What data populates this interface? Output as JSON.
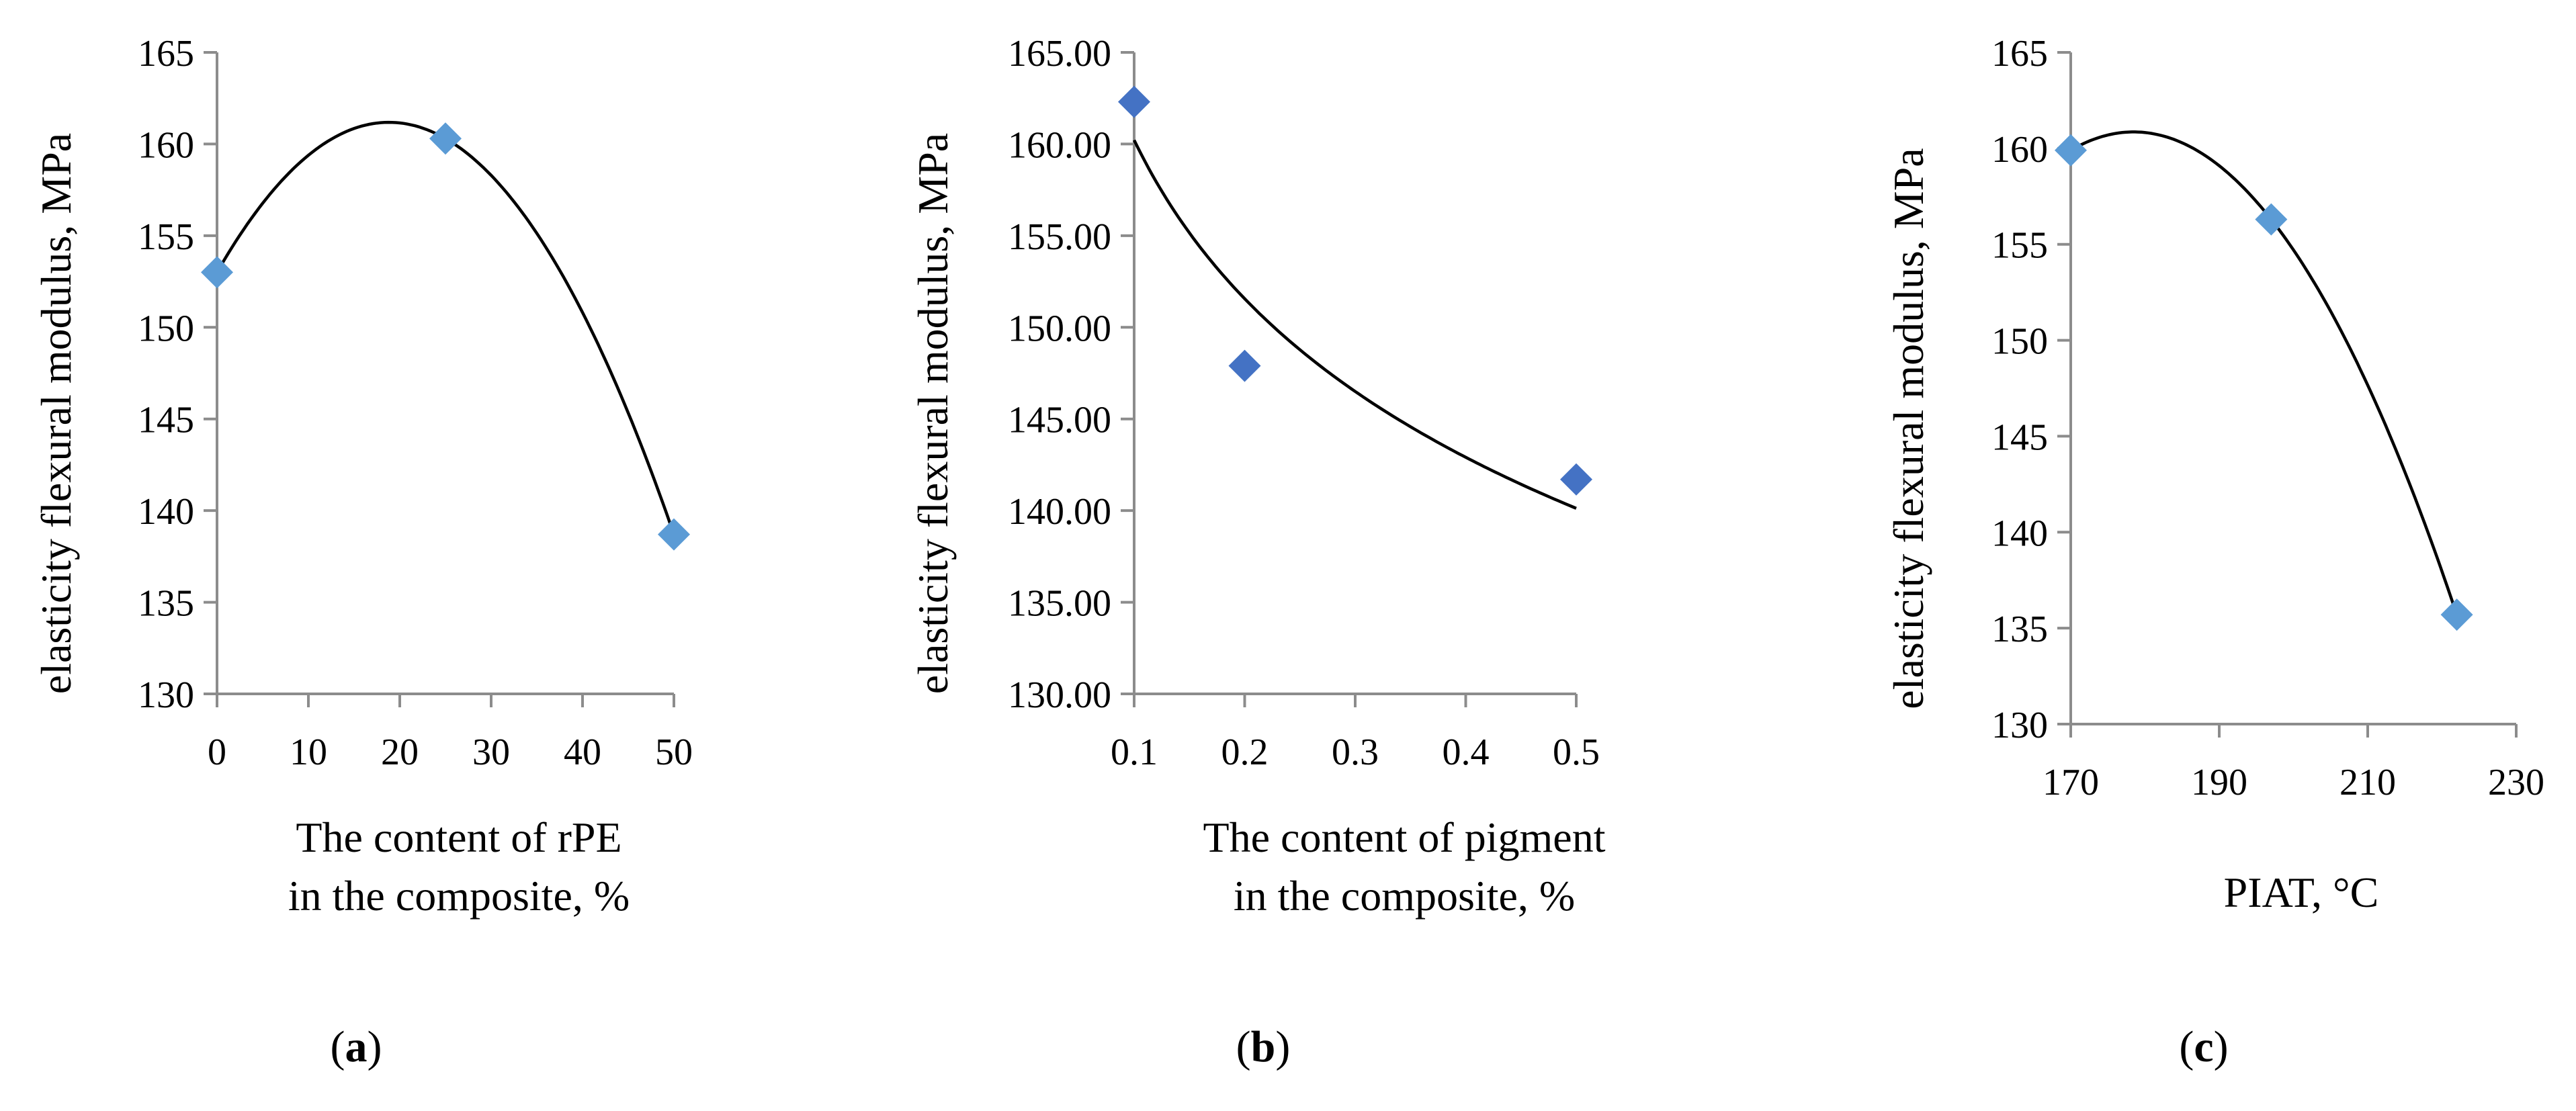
{
  "chart_data": [
    {
      "type": "scatter",
      "panel_label_letter": "a",
      "ylabel": "elasticity flexural modulus, MPa",
      "xlabel_lines": [
        "The content of rPE",
        "in the composite, %"
      ],
      "xlim": [
        0,
        50
      ],
      "ylim": [
        130,
        165
      ],
      "xticks": [
        "0",
        "10",
        "20",
        "30",
        "40",
        "50"
      ],
      "yticks": [
        "130",
        "135",
        "140",
        "145",
        "150",
        "155",
        "160",
        "165"
      ],
      "points": [
        {
          "x": 0,
          "y": 153.0
        },
        {
          "x": 25,
          "y": 160.3
        },
        {
          "x": 50,
          "y": 138.7
        }
      ],
      "trendline": "polynomial",
      "marker_color": "#5b9bd5",
      "grid": false
    },
    {
      "type": "scatter",
      "panel_label_letter": "b",
      "ylabel": "elasticity flexural modulus, MPa",
      "xlabel_lines": [
        "The content of pigment",
        "in the composite, %"
      ],
      "xlim": [
        0.1,
        0.5
      ],
      "ylim": [
        130,
        165
      ],
      "xticks": [
        "0.1",
        "0.2",
        "0.3",
        "0.4",
        "0.5"
      ],
      "yticks": [
        "130.00",
        "135.00",
        "140.00",
        "145.00",
        "150.00",
        "155.00",
        "160.00",
        "165.00"
      ],
      "points": [
        {
          "x": 0.1,
          "y": 162.3
        },
        {
          "x": 0.2,
          "y": 147.9
        },
        {
          "x": 0.5,
          "y": 141.7
        }
      ],
      "trendline": "logarithmic",
      "marker_color": "#4472c4",
      "grid": false
    },
    {
      "type": "scatter",
      "panel_label_letter": "c",
      "ylabel": "elasticity flexural modulus, MPa",
      "xlabel_lines": [
        "PIAT, °C"
      ],
      "xlim": [
        170,
        230
      ],
      "ylim": [
        130,
        165
      ],
      "xticks": [
        "170",
        "190",
        "210",
        "230"
      ],
      "yticks": [
        "130",
        "135",
        "140",
        "145",
        "150",
        "155",
        "160",
        "165"
      ],
      "points": [
        {
          "x": 170,
          "y": 159.9
        },
        {
          "x": 197,
          "y": 156.3
        },
        {
          "x": 222,
          "y": 135.7
        }
      ],
      "trendline": "polynomial",
      "marker_color": "#5b9bd5",
      "grid": false
    }
  ]
}
